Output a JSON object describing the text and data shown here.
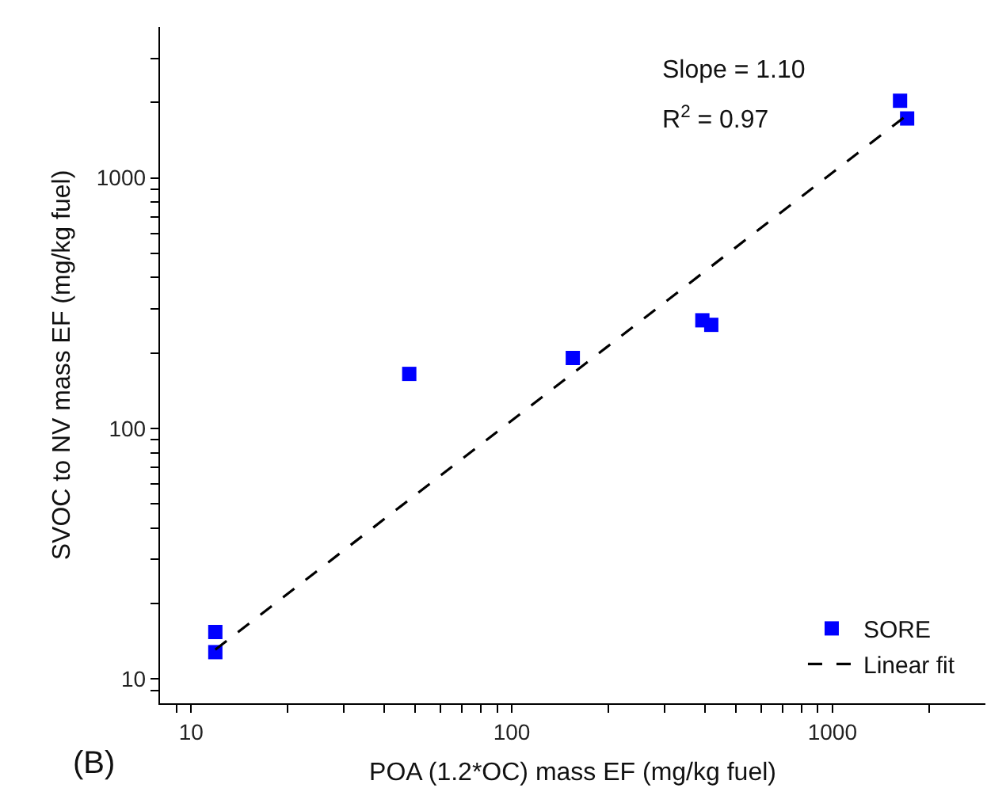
{
  "chart_data": {
    "type": "scatter",
    "xlabel": "POA (1.2*OC) mass EF (mg/kg fuel)",
    "ylabel": "SVOC to NV mass EF (mg/kg fuel)",
    "annotations": [
      "Slope = 1.10",
      "R$^{2}$ = 0.97",
      "(B)"
    ],
    "log": "xy",
    "xlim": [
      8,
      3000
    ],
    "ylim": [
      8,
      4000
    ],
    "xticks": [
      {
        "value": 9,
        "label": null
      },
      10,
      {
        "value": 20,
        "label": null
      },
      {
        "value": 30,
        "label": null
      },
      {
        "value": 40,
        "label": null
      },
      {
        "value": 50,
        "label": null
      },
      {
        "value": 60,
        "label": null
      },
      {
        "value": 70,
        "label": null
      },
      {
        "value": 80,
        "label": null
      },
      {
        "value": 90,
        "label": null
      },
      100,
      {
        "value": 200,
        "label": null
      },
      {
        "value": 300,
        "label": null
      },
      {
        "value": 400,
        "label": null
      },
      {
        "value": 500,
        "label": null
      },
      {
        "value": 600,
        "label": null
      },
      {
        "value": 700,
        "label": null
      },
      {
        "value": 800,
        "label": null
      },
      {
        "value": 900,
        "label": null
      },
      1000,
      {
        "value": 2000,
        "label": null
      }
    ],
    "yticks": [
      {
        "value": 9,
        "label": null
      },
      10,
      {
        "value": 20,
        "label": null
      },
      {
        "value": 30,
        "label": null
      },
      {
        "value": 40,
        "label": null
      },
      {
        "value": 50,
        "label": null
      },
      {
        "value": 60,
        "label": null
      },
      {
        "value": 70,
        "label": null
      },
      {
        "value": 80,
        "label": null
      },
      {
        "value": 90,
        "label": null
      },
      100,
      {
        "value": 200,
        "label": null
      },
      {
        "value": 300,
        "label": null
      },
      {
        "value": 400,
        "label": null
      },
      {
        "value": 500,
        "label": null
      },
      {
        "value": 600,
        "label": null
      },
      {
        "value": 700,
        "label": null
      },
      {
        "value": 800,
        "label": null
      },
      {
        "value": 900,
        "label": null
      },
      1000,
      {
        "value": 2000,
        "label": null
      },
      {
        "value": 3000,
        "label": null
      }
    ],
    "grid": false,
    "legend": "bottom right",
    "marker": "square",
    "series": [
      {
        "name": "SORE",
        "color": "#0000ff",
        "x": [
          1625,
          1710,
          393,
          419,
          155,
          47.9,
          11.9,
          11.9
        ],
        "values": [
          2030,
          1725,
          270,
          259,
          191,
          165,
          15.4,
          12.8
        ]
      },
      {
        "name": "Linear fit",
        "type": "line",
        "color": "#000000",
        "line_style": "dashed",
        "marker": "none",
        "x": [
          11.9,
          1680
        ],
        "values": [
          13.1,
          1750
        ]
      }
    ]
  }
}
